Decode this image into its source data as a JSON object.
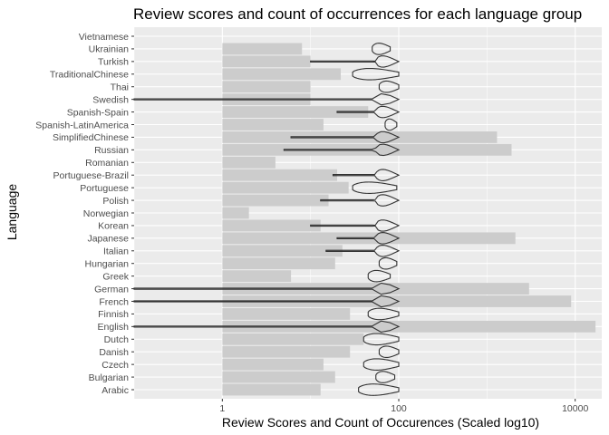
{
  "chart_data": {
    "type": "bar",
    "title": "Review scores and count of occurrences for each language group",
    "xlabel": "Review Scores and Count of Occurences (Scaled log10)",
    "ylabel": "Language",
    "x_scale": "log10",
    "xlim": [
      0.1,
      20000
    ],
    "x_ticks": [
      {
        "value": 1,
        "label": "1"
      },
      {
        "value": 100,
        "label": "100"
      },
      {
        "value": 10000,
        "label": "10000"
      }
    ],
    "grid": true,
    "bar_color": "#cccccc",
    "panel_color": "#ebebeb",
    "categories": [
      "Vietnamese",
      "Ukrainian",
      "Turkish",
      "TraditionalChinese",
      "Thai",
      "Swedish",
      "Spanish-Spain",
      "Spanish-LatinAmerica",
      "SimplifiedChinese",
      "Russian",
      "Romanian",
      "Portuguese-Brazil",
      "Portuguese",
      "Polish",
      "Norwegian",
      "Korean",
      "Japanese",
      "Italian",
      "Hungarian",
      "Greek",
      "German",
      "French",
      "Finnish",
      "English",
      "Dutch",
      "Danish",
      "Czech",
      "Bulgarian",
      "Arabic"
    ],
    "series": [
      {
        "type": "bar",
        "values": [
          1,
          8,
          10,
          22,
          10,
          10,
          45,
          14,
          1300,
          1900,
          4,
          20,
          27,
          16,
          2,
          13,
          2100,
          23,
          19,
          6,
          3000,
          9000,
          28,
          17000,
          40,
          28,
          14,
          19,
          13
        ]
      },
      {
        "type": "violin",
        "ranges": [
          null,
          [
            50,
            80
          ],
          [
            10,
            100
          ],
          [
            30,
            100
          ],
          [
            60,
            100
          ],
          [
            0.1,
            100
          ],
          [
            20,
            100
          ],
          [
            70,
            95
          ],
          [
            6,
            100
          ],
          [
            5,
            100
          ],
          null,
          [
            18,
            100
          ],
          [
            30,
            95
          ],
          [
            13,
            100
          ],
          null,
          [
            10,
            100
          ],
          [
            20,
            100
          ],
          [
            15,
            100
          ],
          [
            60,
            95
          ],
          [
            45,
            80
          ],
          [
            0.1,
            100
          ],
          [
            0.1,
            100
          ],
          [
            45,
            100
          ],
          [
            0.1,
            100
          ],
          [
            40,
            100
          ],
          [
            60,
            100
          ],
          [
            40,
            100
          ],
          [
            55,
            90
          ],
          [
            35,
            100
          ]
        ]
      }
    ]
  }
}
